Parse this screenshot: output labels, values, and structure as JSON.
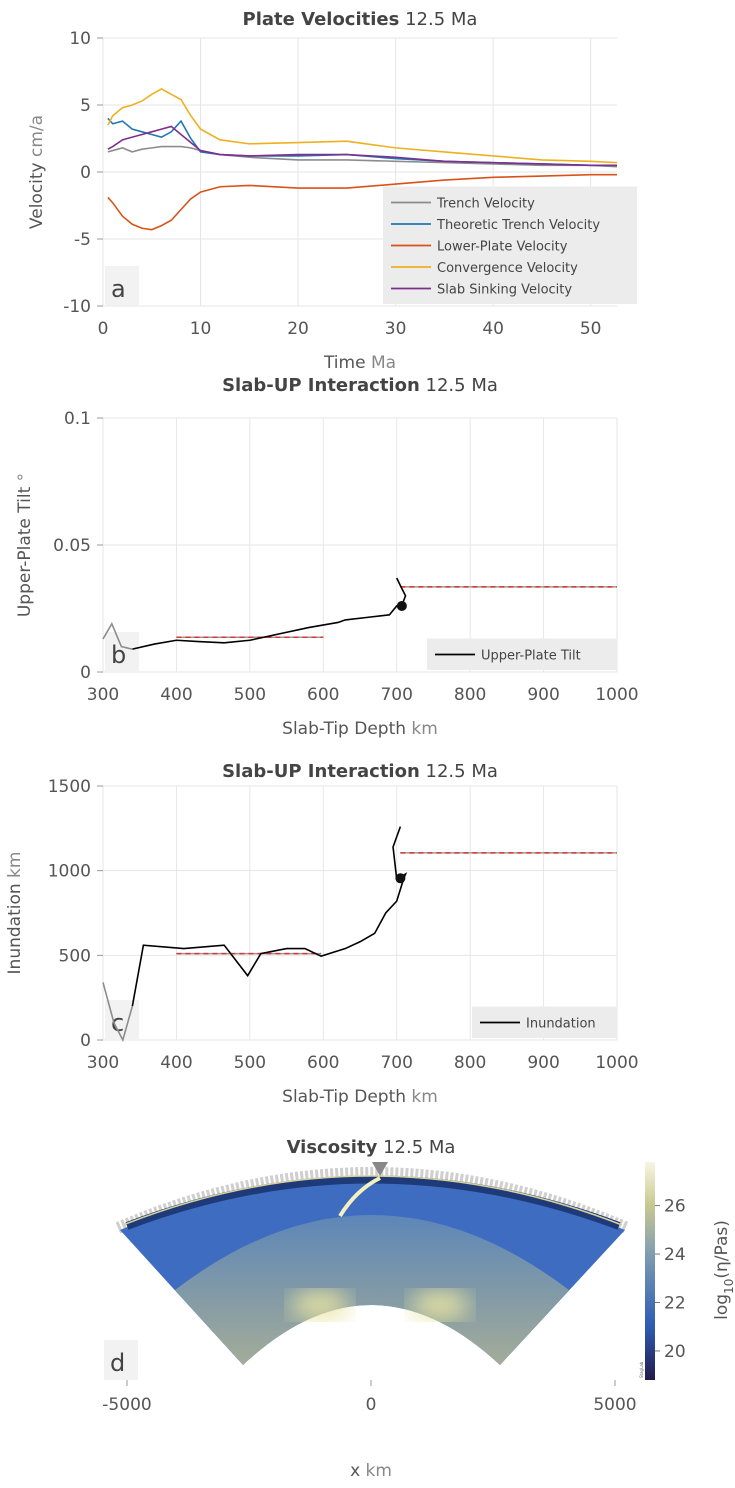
{
  "chart_data": [
    {
      "type": "line",
      "title": "Plate Velocities",
      "title_unit": "12.5 Ma",
      "x_label": "Time",
      "x_unit": "Ma",
      "y_label": "Velocity",
      "y_unit": "cm/a",
      "panel_label": "a",
      "x": [
        0.5,
        1,
        2,
        3,
        4,
        5,
        6,
        7,
        8,
        9,
        10,
        12,
        15,
        20,
        25,
        30,
        35,
        40,
        45,
        50,
        52.7
      ],
      "series": [
        {
          "name": "Trench Velocity",
          "color": "#8c8c8c",
          "values": [
            1.5,
            1.6,
            1.8,
            1.5,
            1.7,
            1.8,
            1.9,
            1.9,
            1.9,
            1.8,
            1.6,
            1.3,
            1.1,
            0.9,
            0.9,
            0.8,
            0.7,
            0.6,
            0.5,
            0.5,
            0.4
          ]
        },
        {
          "name": "Theoretic Trench Velocity",
          "color": "#1f77b4",
          "values": [
            4,
            3.6,
            3.8,
            3.2,
            3.0,
            2.8,
            2.6,
            3.0,
            3.8,
            2.5,
            1.5,
            1.3,
            1.2,
            1.2,
            1.3,
            1.0,
            0.8,
            0.7,
            0.6,
            0.5,
            0.5
          ]
        },
        {
          "name": "Lower-Plate Velocity",
          "color": "#d95319",
          "values": [
            -1.9,
            -2.3,
            -3.3,
            -3.9,
            -4.2,
            -4.3,
            -4.0,
            -3.6,
            -2.8,
            -2.0,
            -1.5,
            -1.1,
            -1.0,
            -1.2,
            -1.2,
            -0.9,
            -0.6,
            -0.4,
            -0.3,
            -0.2,
            -0.2
          ]
        },
        {
          "name": "Convergence Velocity",
          "color": "#edb120",
          "values": [
            3.5,
            4.2,
            4.8,
            5.0,
            5.3,
            5.8,
            6.2,
            5.8,
            5.4,
            4.2,
            3.2,
            2.4,
            2.1,
            2.2,
            2.3,
            1.8,
            1.5,
            1.2,
            0.9,
            0.8,
            0.7
          ]
        },
        {
          "name": "Slab Sinking Velocity",
          "color": "#7e2f8e",
          "values": [
            1.7,
            1.9,
            2.4,
            2.6,
            2.8,
            3.0,
            3.2,
            3.4,
            2.8,
            2.2,
            1.6,
            1.3,
            1.2,
            1.3,
            1.3,
            1.1,
            0.8,
            0.7,
            0.6,
            0.5,
            0.5
          ]
        }
      ],
      "xlim": [
        0,
        52.7
      ],
      "ylim": [
        -10,
        10
      ],
      "xticks": [
        0,
        10,
        20,
        30,
        40,
        50
      ],
      "yticks": [
        -10,
        -5,
        0,
        5,
        10
      ],
      "grid": true,
      "legend": "lower right"
    },
    {
      "type": "line",
      "title": "Slab-UP Interaction",
      "title_unit": "12.5 Ma",
      "x_label": "Slab-Tip Depth",
      "x_unit": "km",
      "y_label": "Upper-Plate Tilt",
      "y_unit": "°",
      "panel_label": "b",
      "series": [
        {
          "name": "Upper-Plate Tilt",
          "color": "#000000",
          "x": [
            340,
            370,
            400,
            430,
            465,
            500,
            540,
            580,
            620,
            630,
            660,
            690,
            700,
            708,
            712,
            705,
            700
          ],
          "values": [
            0.009,
            0.011,
            0.0125,
            0.012,
            0.0115,
            0.0125,
            0.015,
            0.0175,
            0.0195,
            0.0205,
            0.0215,
            0.0225,
            0.026,
            0.027,
            0.03,
            0.034,
            0.037
          ]
        },
        {
          "color": "#8c8c8c",
          "x": [
            300,
            312,
            325,
            340
          ],
          "values": [
            0.013,
            0.019,
            0.01,
            0.009
          ]
        }
      ],
      "ref_lines": [
        {
          "x": [
            400,
            600
          ],
          "y": 0.0137
        },
        {
          "x": [
            705,
            1000
          ],
          "y": 0.0335
        }
      ],
      "marker": {
        "x": 707,
        "y": 0.026
      },
      "xlim": [
        300,
        1000
      ],
      "ylim": [
        0,
        0.1
      ],
      "xticks": [
        300,
        400,
        500,
        600,
        700,
        800,
        900,
        1000
      ],
      "yticks": [
        0,
        0.05,
        0.1
      ],
      "grid": true,
      "legend": "lower right"
    },
    {
      "type": "line",
      "title": "Slab-UP Interaction",
      "title_unit": "12.5 Ma",
      "x_label": "Slab-Tip Depth",
      "x_unit": "km",
      "y_label": "Inundation",
      "y_unit": "km",
      "panel_label": "c",
      "series": [
        {
          "name": "Inundation",
          "color": "#000000",
          "x": [
            340,
            355,
            410,
            465,
            497,
            515,
            550,
            575,
            597,
            630,
            650,
            670,
            685,
            700,
            710,
            712,
            700,
            695,
            705
          ],
          "values": [
            200,
            560,
            540,
            560,
            380,
            510,
            540,
            540,
            495,
            540,
            580,
            630,
            750,
            820,
            960,
            980,
            950,
            1140,
            1260
          ]
        },
        {
          "color": "#8c8c8c",
          "x": [
            300,
            315,
            327,
            340
          ],
          "values": [
            340,
            100,
            0,
            200
          ]
        }
      ],
      "ref_lines": [
        {
          "x": [
            400,
            597
          ],
          "y": 510
        },
        {
          "x": [
            705,
            1000
          ],
          "y": 1105
        }
      ],
      "marker": {
        "x": 705,
        "y": 955
      },
      "xlim": [
        300,
        1000
      ],
      "ylim": [
        0,
        1500
      ],
      "xticks": [
        300,
        400,
        500,
        600,
        700,
        800,
        900,
        1000
      ],
      "yticks": [
        0,
        500,
        1000,
        1500
      ],
      "grid": true,
      "legend": "lower right"
    },
    {
      "type": "section",
      "title": "Viscosity",
      "title_unit": "12.5 Ma",
      "x_label": "x",
      "x_unit": "km",
      "panel_label": "d",
      "xlim": [
        -5000,
        5000
      ],
      "xticks": [
        -5000,
        0,
        5000
      ],
      "colorbar_label": {
        "base": "log",
        "sub": "10",
        "rest": "(η/Pas)"
      },
      "clim": [
        18.8,
        27.8
      ],
      "cticks": [
        20,
        22,
        24,
        26
      ],
      "watermark": "StagLab"
    }
  ]
}
